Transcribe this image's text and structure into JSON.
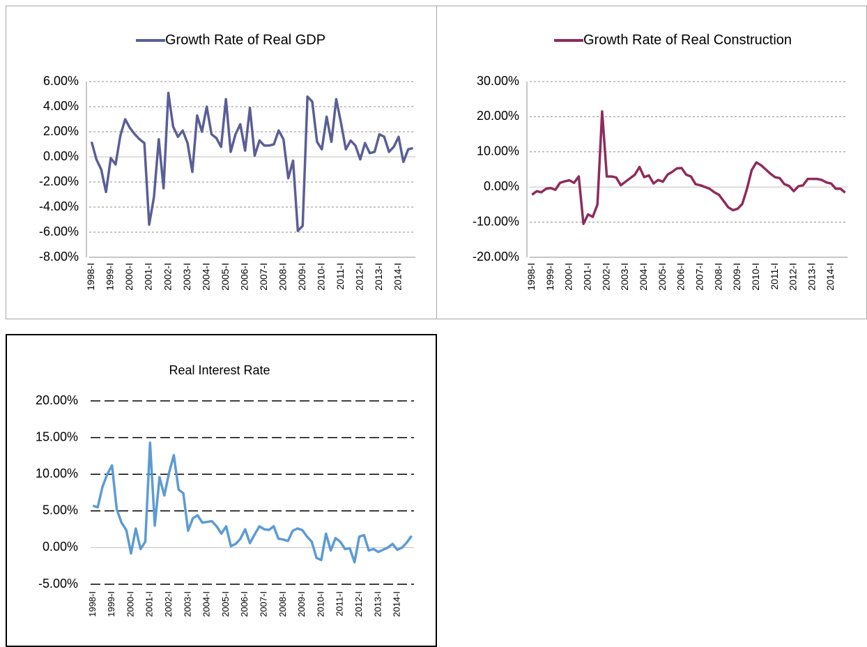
{
  "chart_data": [
    {
      "type": "line",
      "legend": "top",
      "grid": true,
      "categories": [
        "1998-I",
        null,
        null,
        null,
        "1999-I",
        null,
        null,
        null,
        "2000-I",
        null,
        null,
        null,
        "2001-I",
        null,
        null,
        null,
        "2002-I",
        null,
        null,
        null,
        "2003-I",
        null,
        null,
        null,
        "2004-I",
        null,
        null,
        null,
        "2005-I",
        null,
        null,
        null,
        "2006-I",
        null,
        null,
        null,
        "2007-I",
        null,
        null,
        null,
        "2008-I",
        null,
        null,
        null,
        "2009-I",
        null,
        null,
        null,
        "2010-I",
        null,
        null,
        null,
        "2011-I",
        null,
        null,
        null,
        "2012-I",
        null,
        null,
        null,
        "2013-I",
        null,
        null,
        null,
        "2014-I",
        null,
        null,
        null
      ],
      "series": [
        {
          "name": "Growth Rate of Real GDP",
          "color": "#5b5e96",
          "values": [
            1.2,
            -0.2,
            -1.0,
            -2.8,
            -0.1,
            -0.6,
            1.7,
            3.0,
            2.3,
            1.8,
            1.4,
            1.1,
            -5.4,
            -3.2,
            1.4,
            -2.5,
            5.1,
            2.4,
            1.6,
            2.1,
            1.1,
            -1.2,
            3.3,
            2.0,
            4.0,
            1.8,
            1.5,
            0.8,
            4.6,
            0.4,
            1.8,
            2.6,
            0.5,
            3.9,
            0.1,
            1.3,
            0.9,
            0.9,
            1.0,
            2.1,
            1.4,
            -1.7,
            -0.3,
            -5.9,
            -5.5,
            4.8,
            4.4,
            1.2,
            0.6,
            3.2,
            1.2,
            4.6,
            2.7,
            0.6,
            1.3,
            0.9,
            -0.2,
            1.1,
            0.3,
            0.4,
            1.8,
            1.6,
            0.4,
            0.8,
            1.6,
            -0.4,
            0.6,
            0.7
          ]
        }
      ],
      "ylim": [
        -8,
        6
      ],
      "yticks": [
        {
          "value": -8,
          "label": "-8.00%"
        },
        {
          "value": -6,
          "label": "-6.00%"
        },
        {
          "value": -4,
          "label": "-4.00%"
        },
        {
          "value": -2,
          "label": "-2.00%"
        },
        {
          "value": 0,
          "label": "0.00%"
        },
        {
          "value": 2,
          "label": "2.00%"
        },
        {
          "value": 4,
          "label": "4.00%"
        },
        {
          "value": 6,
          "label": "6.00%"
        }
      ]
    },
    {
      "type": "line",
      "legend": "top",
      "grid": true,
      "categories": [
        "1998-I",
        null,
        null,
        null,
        "1999-I",
        null,
        null,
        null,
        "2000-I",
        null,
        null,
        null,
        "2001-I",
        null,
        null,
        null,
        "2002-I",
        null,
        null,
        null,
        "2003-I",
        null,
        null,
        null,
        "2004-I",
        null,
        null,
        null,
        "2005-I",
        null,
        null,
        null,
        "2006-I",
        null,
        null,
        null,
        "2007-I",
        null,
        null,
        null,
        "2008-I",
        null,
        null,
        null,
        "2009-I",
        null,
        null,
        null,
        "2010-I",
        null,
        null,
        null,
        "2011-I",
        null,
        null,
        null,
        "2012-I",
        null,
        null,
        null,
        "2013-I",
        null,
        null,
        null,
        "2014-I",
        null,
        null,
        null
      ],
      "series": [
        {
          "name": "Growth Rate of Real Construction",
          "color": "#8e2b5c",
          "values": [
            -2.2,
            -1.2,
            -1.5,
            -0.5,
            -0.3,
            -0.8,
            1.2,
            1.6,
            1.9,
            1.2,
            3.0,
            -10.5,
            -7.8,
            -8.5,
            -5.0,
            21.5,
            3.0,
            3.0,
            2.7,
            0.5,
            1.5,
            2.5,
            3.5,
            5.7,
            2.8,
            3.3,
            1.0,
            2.0,
            1.5,
            3.5,
            4.3,
            5.3,
            5.4,
            3.5,
            3.0,
            0.8,
            0.5,
            0,
            -0.5,
            -1.5,
            -2.2,
            -4.0,
            -5.8,
            -6.6,
            -6.2,
            -4.8,
            -0.5,
            4.8,
            7.0,
            6.2,
            5.0,
            3.8,
            2.8,
            2.5,
            0.8,
            0.3,
            -1.2,
            0.2,
            0.5,
            2.3,
            2.3,
            2.3,
            2.0,
            1.3,
            1.0,
            -0.5,
            -0.5,
            -1.6
          ]
        }
      ],
      "ylim": [
        -20,
        30
      ],
      "yticks": [
        {
          "value": -20,
          "label": "-20.00%"
        },
        {
          "value": -10,
          "label": "-10.00%"
        },
        {
          "value": 0,
          "label": "0.00%"
        },
        {
          "value": 10,
          "label": "10.00%"
        },
        {
          "value": 20,
          "label": "20.00%"
        },
        {
          "value": 30,
          "label": "30.00%"
        }
      ]
    },
    {
      "type": "line",
      "title": "Real Interest Rate",
      "grid": true,
      "categories": [
        "1998-I",
        null,
        null,
        null,
        "1999-I",
        null,
        null,
        null,
        "2000-I",
        null,
        null,
        null,
        "2001-I",
        null,
        null,
        null,
        "2002-I",
        null,
        null,
        null,
        "2003-I",
        null,
        null,
        null,
        "2004-I",
        null,
        null,
        null,
        "2005-I",
        null,
        null,
        null,
        "2006-I",
        null,
        null,
        null,
        "2007-I",
        null,
        null,
        null,
        "2008-I",
        null,
        null,
        null,
        "2009-I",
        null,
        null,
        null,
        "2010-I",
        null,
        null,
        null,
        "2011-I",
        null,
        null,
        null,
        "2012-I",
        null,
        null,
        null,
        "2013-I",
        null,
        null,
        null,
        "2014-I",
        null,
        null,
        null
      ],
      "series": [
        {
          "color": "#5b9bd5",
          "values": [
            5.7,
            5.5,
            8.3,
            10.0,
            11.2,
            5.2,
            3.4,
            2.4,
            -0.8,
            2.6,
            -0.2,
            0.8,
            14.3,
            3.0,
            9.6,
            7.1,
            10.2,
            12.6,
            7.9,
            7.4,
            2.3,
            4.0,
            4.4,
            3.4,
            3.5,
            3.6,
            2.9,
            1.9,
            2.9,
            0.2,
            0.5,
            1.2,
            2.5,
            0.6,
            1.8,
            2.9,
            2.5,
            2.4,
            2.9,
            1.2,
            1.1,
            0.9,
            2.3,
            2.6,
            2.4,
            1.5,
            0.8,
            -1.4,
            -1.7,
            1.9,
            -0.4,
            1.3,
            0.8,
            -0.2,
            -0.1,
            -2.0,
            1.5,
            1.7,
            -0.4,
            -0.2,
            -0.6,
            -0.3,
            0.0,
            0.5,
            -0.3,
            0.0,
            0.7,
            1.6
          ]
        }
      ],
      "ylim": [
        -5,
        20
      ],
      "yticks": [
        {
          "value": -5,
          "label": "-5.00%"
        },
        {
          "value": 0,
          "label": "0.00%"
        },
        {
          "value": 5,
          "label": "5.00%"
        },
        {
          "value": 10,
          "label": "10.00%"
        },
        {
          "value": 15,
          "label": "15.00%"
        },
        {
          "value": 20,
          "label": "20.00%"
        }
      ]
    }
  ]
}
